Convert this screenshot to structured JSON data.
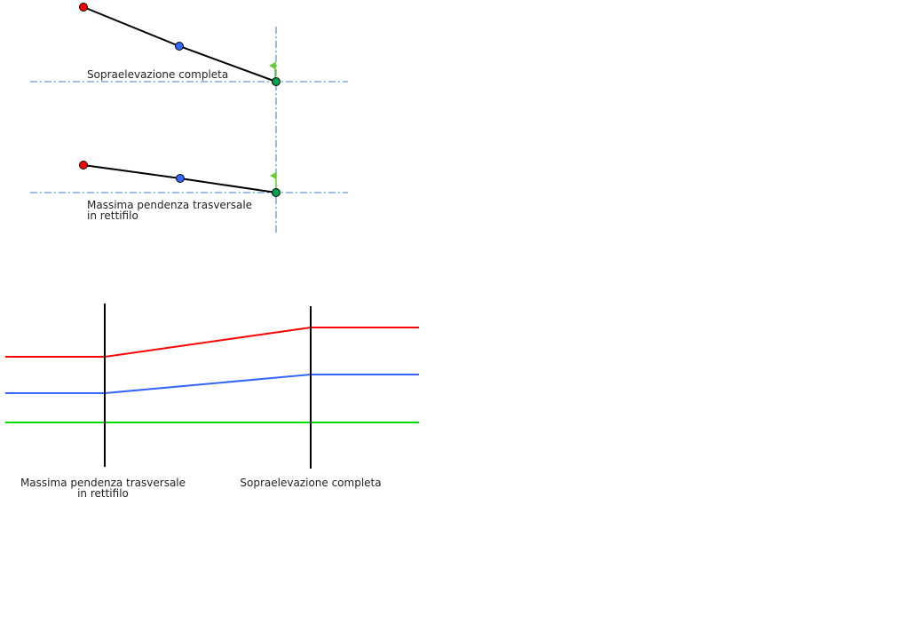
{
  "top_diagram": {
    "sections": [
      {
        "label_lines": [
          "Sopraelevazione completa"
        ]
      },
      {
        "label_lines": [
          "Massima pendenza trasversale",
          "in rettifilo"
        ]
      }
    ],
    "point_colors": {
      "outer": "#ff0000",
      "middle": "#3366ff",
      "pivot": "#00a050"
    },
    "axis_color": "#3a7bc8",
    "flag_color": "#66cc33"
  },
  "bottom_diagram": {
    "labels": [
      {
        "lines": [
          "Massima pendenza trasversale",
          "in rettifilo"
        ]
      },
      {
        "lines": [
          "Sopraelevazione completa"
        ]
      }
    ],
    "line_colors": {
      "outer": "#ff0000",
      "middle": "#3366ff",
      "axis": "#00dd00"
    }
  }
}
